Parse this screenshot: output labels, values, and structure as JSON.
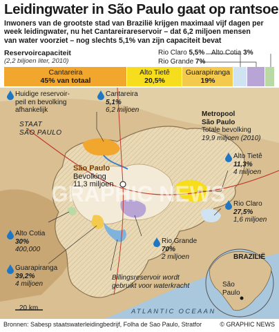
{
  "title": "Leidingwater in São Paulo gaat op rantsoen",
  "subtitle_lines": [
    "Inwoners van de grootste stad van Brazilië krijgen maximaal vijf dagen per",
    "week leidingwater, nu het Cantareirareservoir – dat 6,2 miljoen mensen",
    "van water voorziet – nog slechts 5,1% van zijn capaciteit bevat"
  ],
  "capacity": {
    "title": "Reservoircapaciteit",
    "unit": "(2,2 biljoen liter, 2010)",
    "segments": [
      {
        "name": "Cantareira",
        "value": "45% van totaal",
        "share": 45,
        "color": "#f1a62d"
      },
      {
        "name": "Alto Tietê",
        "value": "20,5%",
        "share": 20.5,
        "color": "#f6dd1e"
      },
      {
        "name": "Guarapiranga",
        "value": "19%",
        "share": 19,
        "color": "#f3c94e"
      },
      {
        "name": "Rio Claro",
        "value": "5,5%",
        "share": 5.5,
        "color": "#cfe3f2"
      },
      {
        "name": "Rio Grande",
        "value": "7%",
        "share": 7,
        "color": "#b8a5d6"
      },
      {
        "name": "Alto Cotia",
        "value": "3%",
        "share": 3,
        "color": "#b9d9a5"
      }
    ]
  },
  "legend": {
    "text_line1": "Huidige reservoir-",
    "text_line2": "peil en bevolking",
    "text_line3": "afhankelijk"
  },
  "state_label": {
    "line1": "STAAT",
    "line2": "SÃO PAULO"
  },
  "reservoirs": [
    {
      "name": "Cantareira",
      "level": "5,1%",
      "population": "6,2 miljoen"
    },
    {
      "name": "Alto Tietê",
      "level": "11,3%",
      "population": "4 miljoen"
    },
    {
      "name": "Rio Claro",
      "level": "27,5%",
      "population": "1,6 miljoen"
    },
    {
      "name": "Rio Grande",
      "level": "70%",
      "population": "2 miljoen"
    },
    {
      "name": "Alto Cotia",
      "level": "30%",
      "population": "400,000"
    },
    {
      "name": "Guarapiranga",
      "level": "39,2%",
      "population": "4 miljoen"
    }
  ],
  "metro": {
    "title_line1": "Metropool",
    "title_line2": "São Paulo",
    "pop_line1": "Totale bevolking",
    "pop_line2": "19,9 miljoen (2010)"
  },
  "city": {
    "name": "São Paulo",
    "pop_line1": "Bevolking",
    "pop_line2": "11,3 miljoen"
  },
  "billings": {
    "line1": "Billingsreservoir wordt",
    "line2": "gebruikt voor waterkracht"
  },
  "inset": {
    "country": "BRAZILIË",
    "city_line1": "São",
    "city_line2": "Paulo"
  },
  "scale": "20 km",
  "ocean": "ATLANTIC OCEAAN",
  "source": "Bronnen: Sabesp staatswaterleidingbedrijf, Folha de Sao Paulo, Stratfor",
  "credit": "© GRAPHIC NEWS",
  "watermark": "GRAPHIC NEWS",
  "colors": {
    "background": "#ffffff",
    "water_blue": "#1f77c4",
    "map_tan": "#d7b98a",
    "urban": "#f1e9d8",
    "ocean": "#a9c7dd"
  }
}
